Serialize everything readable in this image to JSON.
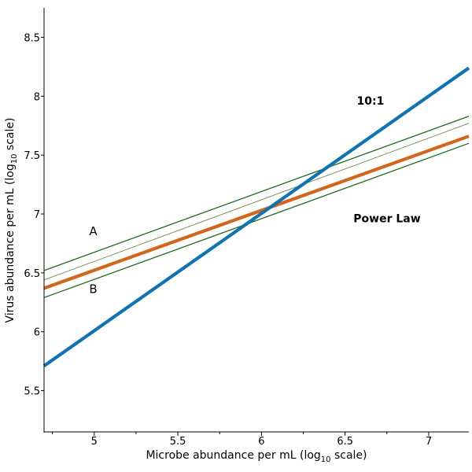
{
  "chart_data": {
    "type": "line",
    "xlabel": {
      "prefix": "Microbe abundance per mL (log",
      "sub": "10",
      "suffix": " scale)"
    },
    "ylabel": {
      "prefix": "Virus abundance per mL (log",
      "sub": "10",
      "suffix": " scale)"
    },
    "xlim": [
      4.7,
      7.24
    ],
    "ylim": [
      5.15,
      8.75
    ],
    "x_ticks": [
      5,
      5.5,
      6,
      6.5,
      7
    ],
    "x_tick_labels": [
      "5",
      "5.5",
      "6",
      "6.5",
      "7"
    ],
    "x_minor_ticks": [
      4.75,
      5.25,
      5.75,
      6.25,
      6.75
    ],
    "y_ticks": [
      5.5,
      6,
      6.5,
      7,
      7.5,
      8,
      8.5
    ],
    "y_tick_labels": [
      "5.5",
      "6",
      "6.5",
      "7",
      "7.5",
      "8",
      "8.5"
    ],
    "series": [
      {
        "name": "10:1",
        "color": "#1273b0",
        "x": [
          4.7,
          7.24
        ],
        "y": [
          5.71,
          8.24
        ]
      },
      {
        "name": "Power Law",
        "color": "#d2661a",
        "x": [
          4.7,
          7.24
        ],
        "y": [
          6.37,
          7.66
        ]
      },
      {
        "name": "A",
        "color": "#1a6a1a",
        "x": [
          4.7,
          7.24
        ],
        "y": [
          6.52,
          7.83
        ]
      },
      {
        "name": "B",
        "color": "#1a6a1a",
        "x": [
          4.7,
          7.24
        ],
        "y": [
          6.29,
          7.6
        ]
      },
      {
        "color": "#6c8a4a",
        "x": [
          4.7,
          7.24
        ],
        "y": [
          6.44,
          7.77
        ]
      }
    ],
    "annotations": [
      {
        "text": "10:1",
        "x": 6.57,
        "y": 7.93
      },
      {
        "text": "Power Law",
        "x": 6.55,
        "y": 6.93
      },
      {
        "text": "A",
        "x": 4.97,
        "y": 6.82
      },
      {
        "text": "B",
        "x": 4.97,
        "y": 6.33
      }
    ]
  }
}
